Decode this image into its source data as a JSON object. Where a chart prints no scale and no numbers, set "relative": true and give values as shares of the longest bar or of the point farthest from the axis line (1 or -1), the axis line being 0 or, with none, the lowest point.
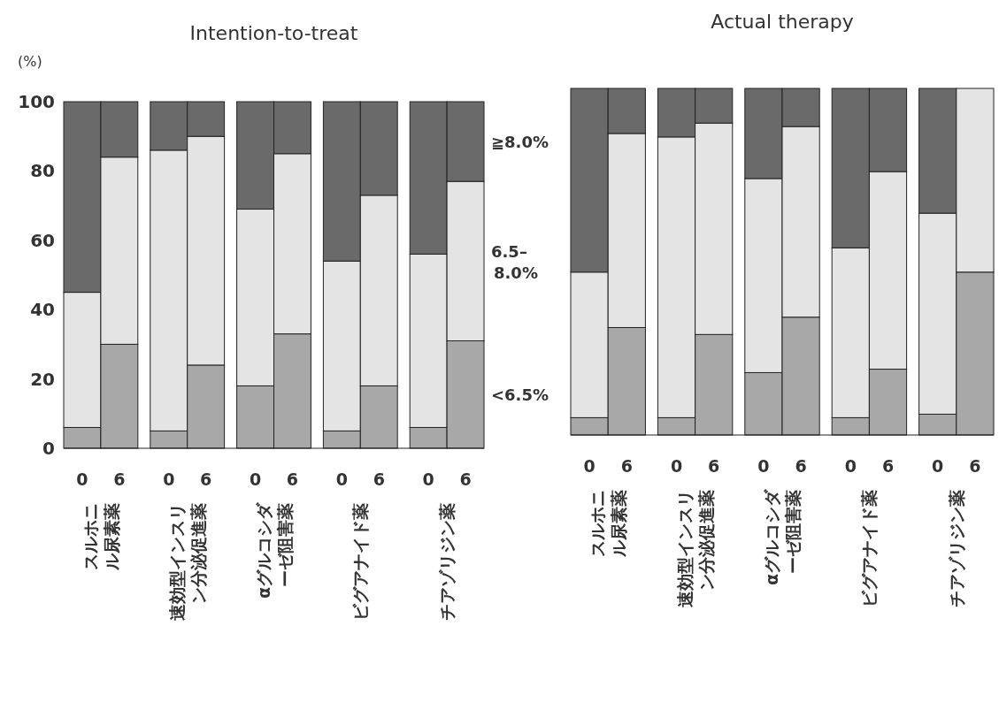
{
  "chart_data": [
    {
      "type": "bar",
      "stacked": true,
      "title": "Intention-to-treat",
      "ylabel": "(%)",
      "categories": [
        "0",
        "6",
        "0",
        "6",
        "0",
        "6",
        "0",
        "6",
        "0",
        "6"
      ],
      "ylim": [
        0,
        100
      ],
      "yticks": [
        0,
        20,
        40,
        60,
        80,
        100
      ],
      "series": [
        {
          "name": "<6.5%",
          "color": "#a8a8a8",
          "values": [
            6,
            30,
            5,
            24,
            18,
            33,
            5,
            18,
            6,
            31
          ]
        },
        {
          "name": "6.5–8.0%",
          "color": "#e4e4e4",
          "values": [
            39,
            54,
            81,
            66,
            51,
            52,
            49,
            55,
            50,
            46
          ]
        },
        {
          "name": "≧8.0%",
          "color": "#6a6a6a",
          "values": [
            55,
            16,
            14,
            10,
            31,
            15,
            46,
            27,
            44,
            23
          ]
        }
      ],
      "annotations": [
        "スルホニル尿素薬",
        "速効型インスリン分泌促進薬",
        "αグルコシダーゼ阻害薬",
        "ビグアナイド薬",
        "チアゾリジン薬"
      ]
    },
    {
      "type": "bar",
      "stacked": true,
      "relative": true,
      "title": "Actual therapy",
      "categories": [
        "0",
        "6",
        "0",
        "6",
        "0",
        "6",
        "0",
        "6",
        "0",
        "6"
      ],
      "series": [
        {
          "color": "#a8a8a8",
          "values": [
            0.05,
            0.31,
            0.05,
            0.29,
            0.18,
            0.34,
            0.05,
            0.19,
            0.06,
            0.47
          ]
        },
        {
          "color": "#e4e4e4",
          "values": [
            0.42,
            0.56,
            0.81,
            0.61,
            0.56,
            0.55,
            0.49,
            0.57,
            0.58,
            0.53
          ]
        },
        {
          "color": "#6a6a6a",
          "values": [
            0.53,
            0.13,
            0.14,
            0.1,
            0.26,
            0.11,
            0.46,
            0.24,
            0.36,
            0
          ]
        }
      ],
      "annotations": [
        "スルホニル尿素薬",
        "速効型インスリン分泌促進薬",
        "αグルコシダーゼ阻害薬",
        "ビグアナイド薬",
        "チアゾリジン薬"
      ]
    }
  ]
}
